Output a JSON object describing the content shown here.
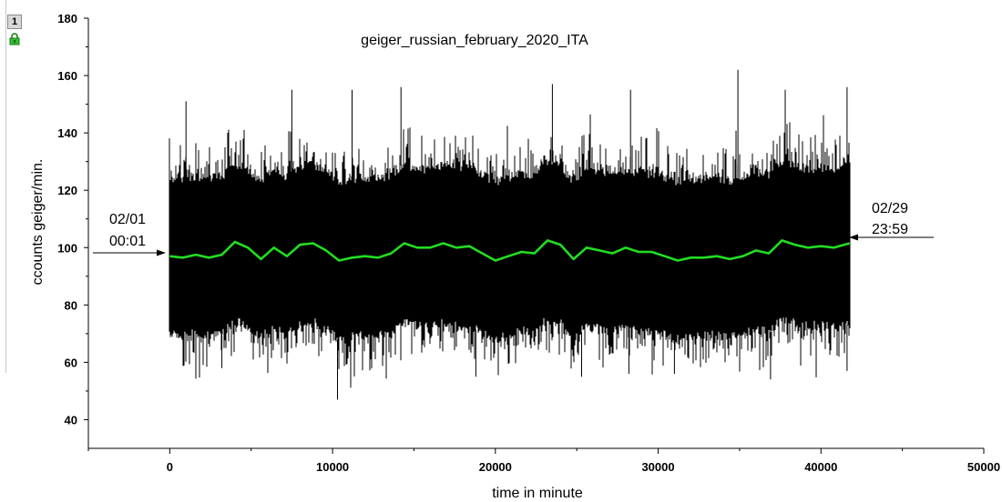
{
  "layer_badge": "1",
  "icons": {
    "lock": "lock-icon"
  },
  "colors": {
    "signal": "#000000",
    "moving_average": "#22dd22",
    "axis": "#000000"
  },
  "chart_data": {
    "type": "line",
    "title": "geiger_russian_february_2020_ITA",
    "xlabel": "time in minute",
    "ylabel": "ccounts geiger/min.",
    "xlim": [
      -5000,
      50000
    ],
    "ylim": [
      30,
      180
    ],
    "x_ticks": [
      0,
      10000,
      20000,
      30000,
      40000,
      50000
    ],
    "y_ticks": [
      40,
      60,
      80,
      100,
      120,
      140,
      160,
      180
    ],
    "grid": false,
    "legend": "none",
    "series": [
      {
        "role": "raw counts",
        "x_range": [
          0,
          41759
        ],
        "typical_band": [
          72,
          128
        ],
        "max_spikes": [
          [
            1000,
            151
          ],
          [
            7500,
            155
          ],
          [
            11200,
            155
          ],
          [
            14200,
            156
          ],
          [
            23500,
            157
          ],
          [
            28300,
            155
          ],
          [
            34900,
            162
          ],
          [
            37800,
            155
          ],
          [
            41600,
            156
          ]
        ],
        "min_spikes": [
          [
            3200,
            58
          ],
          [
            10300,
            47
          ],
          [
            18800,
            55
          ],
          [
            25300,
            55
          ],
          [
            28200,
            56
          ],
          [
            31000,
            56
          ],
          [
            36900,
            54
          ],
          [
            41600,
            57
          ]
        ]
      },
      {
        "role": "moving average",
        "x": [
          0,
          800,
          1600,
          2400,
          3200,
          4000,
          4800,
          5600,
          6400,
          7200,
          8000,
          8800,
          9600,
          10400,
          11200,
          12000,
          12800,
          13600,
          14400,
          15200,
          16000,
          16800,
          17600,
          18400,
          19200,
          20000,
          20800,
          21600,
          22400,
          23200,
          24000,
          24800,
          25600,
          26400,
          27200,
          28000,
          28800,
          29600,
          30400,
          31200,
          32000,
          32800,
          33600,
          34400,
          35200,
          36000,
          36800,
          37600,
          38400,
          39200,
          40000,
          40800,
          41759
        ],
        "y": [
          97,
          96.5,
          97.5,
          96.5,
          97.5,
          102,
          100,
          96,
          100,
          97,
          101,
          101.5,
          99,
          95.5,
          96.5,
          97,
          96.5,
          98,
          101.5,
          100,
          100,
          101.5,
          100,
          100.5,
          98,
          95.5,
          97,
          98.5,
          98,
          102.5,
          101,
          96,
          100,
          99,
          98,
          100,
          98.5,
          98.5,
          97,
          95.5,
          96.5,
          96.5,
          97,
          96,
          97,
          99,
          98,
          102.5,
          101,
          100,
          100.5,
          100,
          101.5
        ]
      }
    ],
    "annotations": [
      {
        "line1": "02/01",
        "line2": "00:01",
        "x": 0,
        "y": 98
      },
      {
        "line1": "02/29",
        "line2": "23:59",
        "x": 41759,
        "y": 101
      }
    ]
  }
}
